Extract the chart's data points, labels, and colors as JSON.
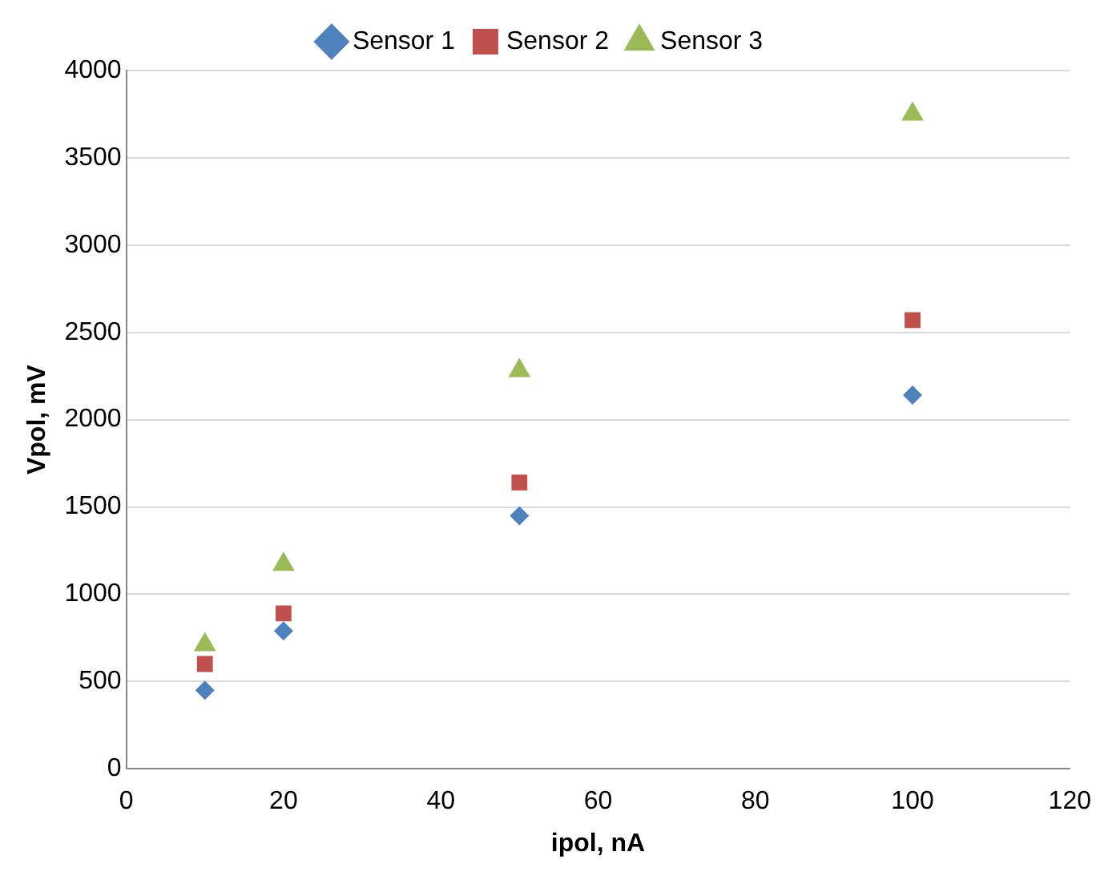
{
  "chart_data": {
    "type": "scatter",
    "xlabel": "ipol, nA",
    "ylabel": "Vpol, mV",
    "x": [
      10,
      20,
      50,
      100
    ],
    "series": [
      {
        "name": "Sensor 1",
        "color": "#4f81bd",
        "marker": "diamond",
        "values": [
          450,
          790,
          1450,
          2140
        ]
      },
      {
        "name": "Sensor 2",
        "color": "#c0504d",
        "marker": "square",
        "values": [
          600,
          890,
          1640,
          2570
        ]
      },
      {
        "name": "Sensor 3",
        "color": "#9bbb59",
        "marker": "triangle",
        "values": [
          710,
          1170,
          2280,
          3750
        ]
      }
    ],
    "xlim": [
      0,
      120
    ],
    "xticks": [
      0,
      20,
      40,
      60,
      80,
      100,
      120
    ],
    "ylim": [
      0,
      4000
    ],
    "yticks": [
      0,
      500,
      1000,
      1500,
      2000,
      2500,
      3000,
      3500,
      4000
    ],
    "grid": "y",
    "legend": "top"
  }
}
